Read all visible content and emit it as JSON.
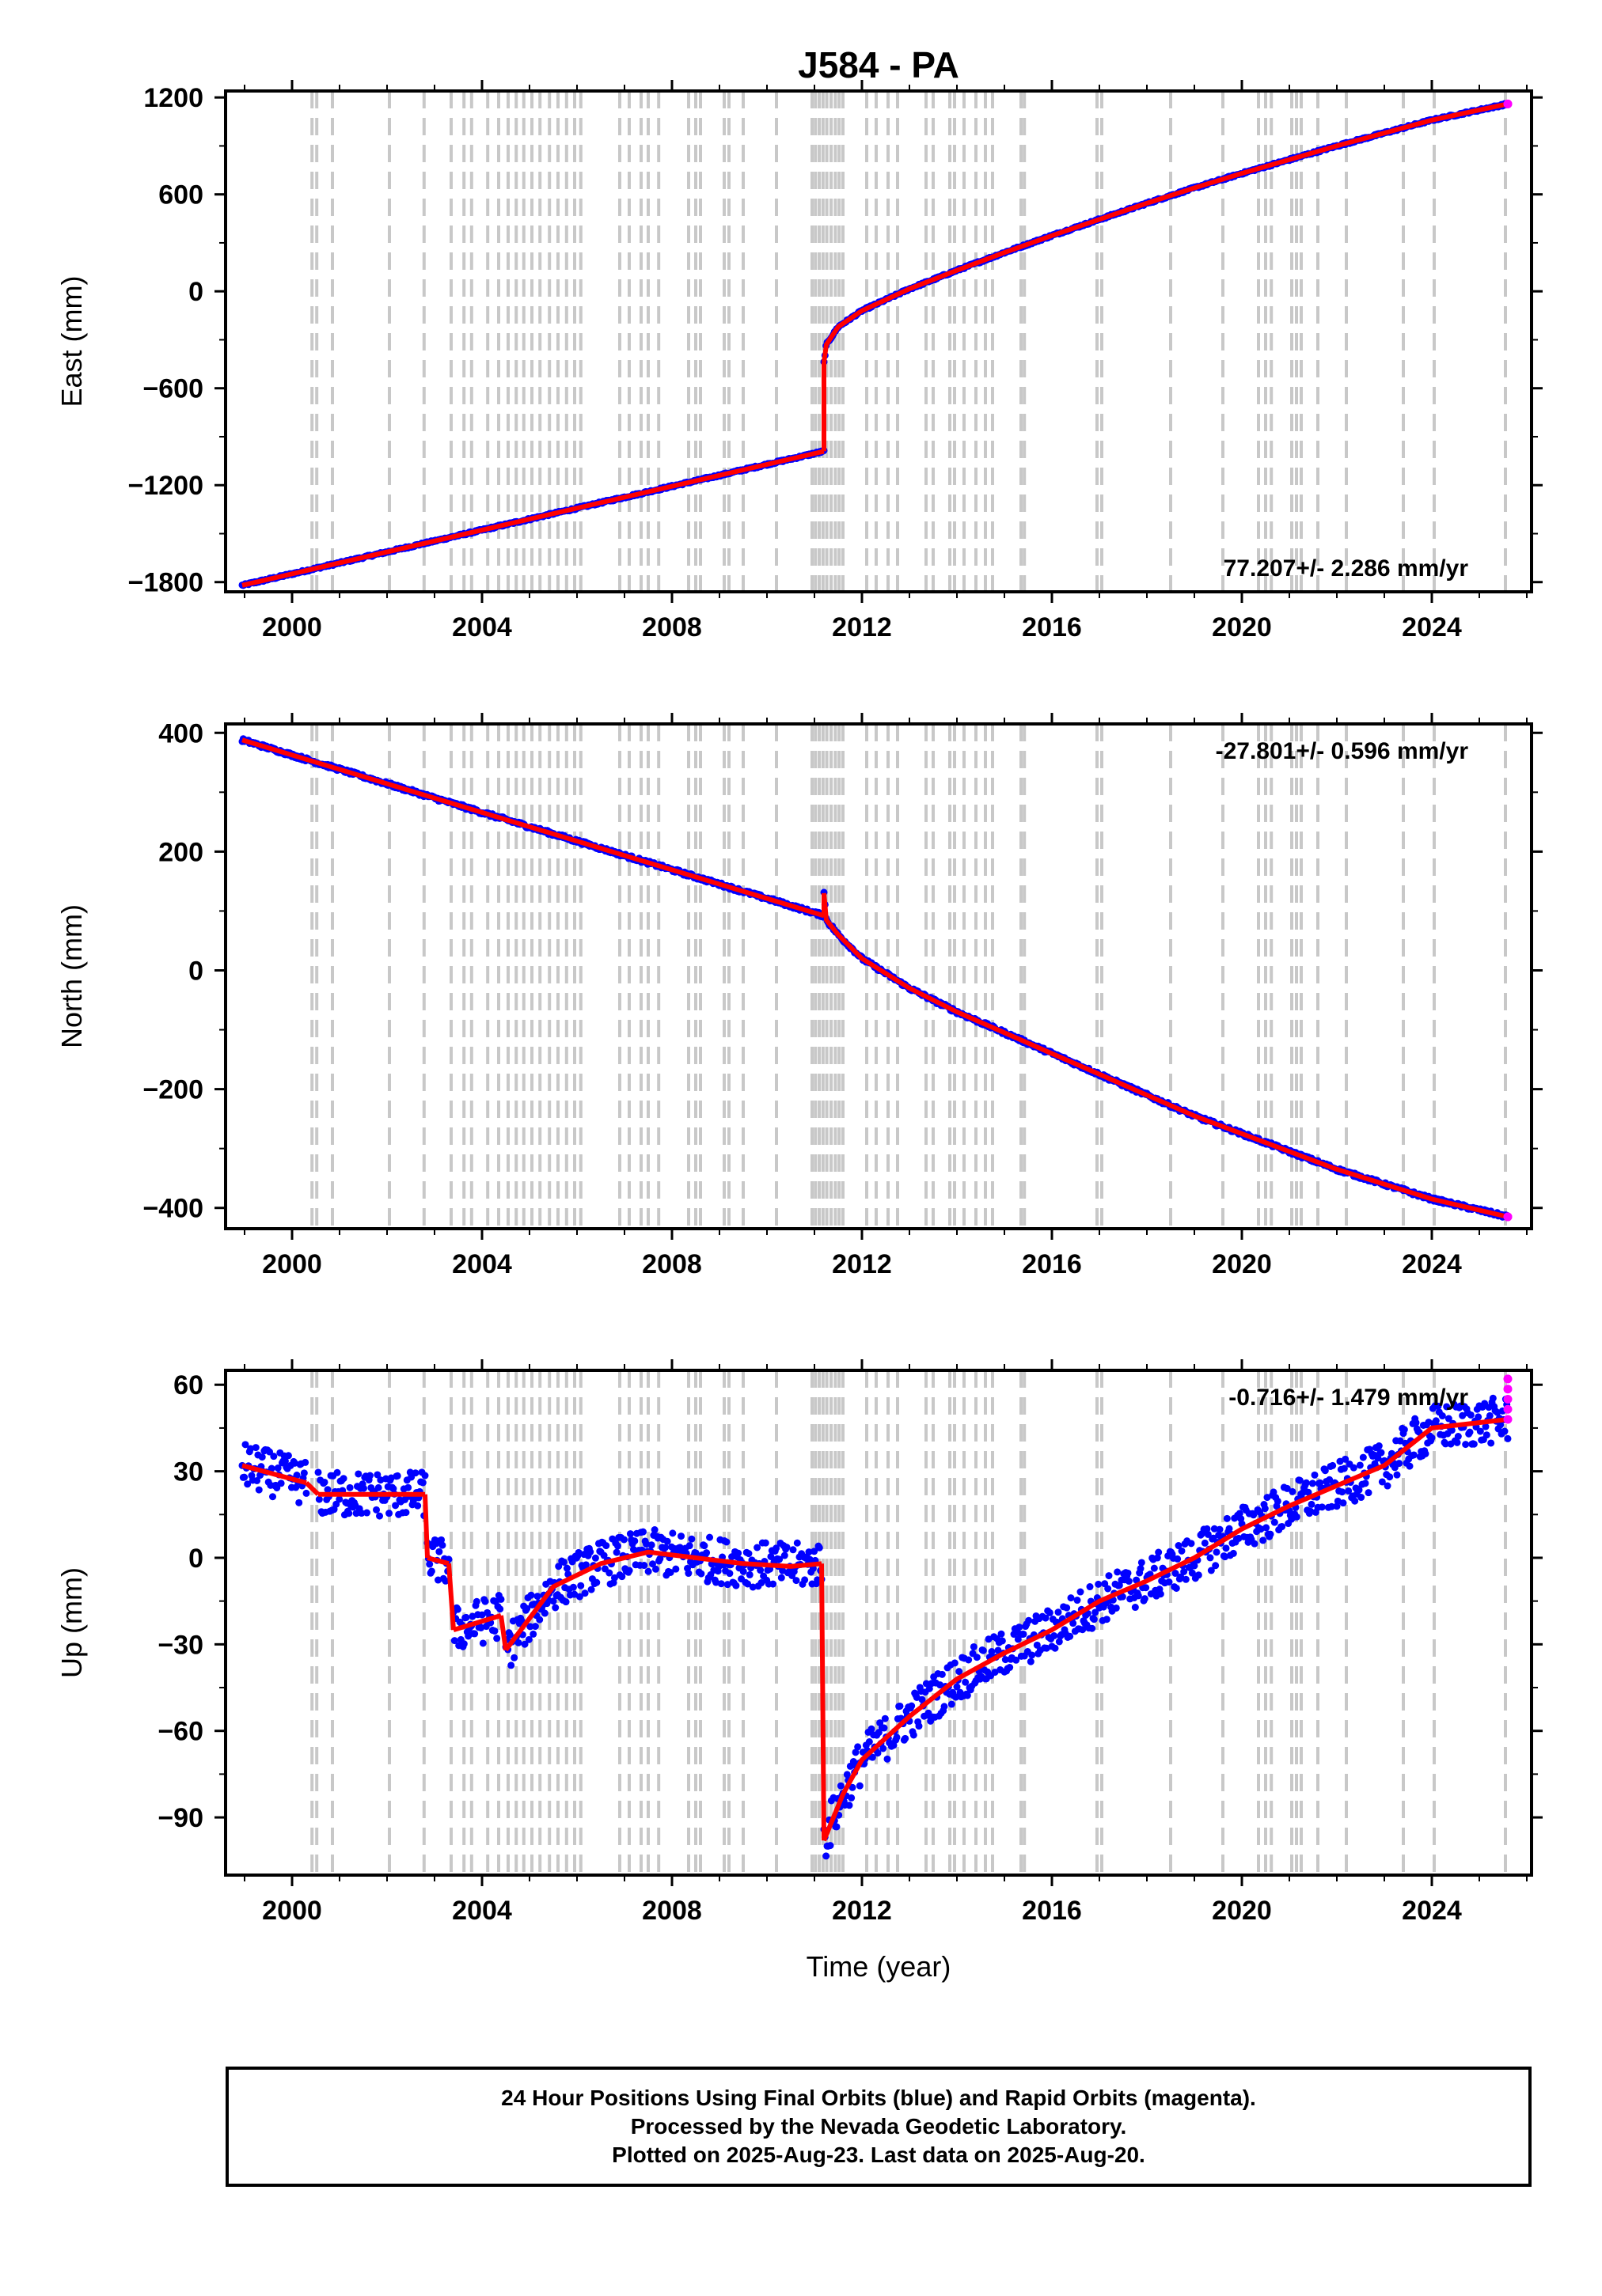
{
  "chart_data": {
    "title": "J584 - PA",
    "xlabel": "Time (year)",
    "xlim": [
      1998.6,
      2026.1
    ],
    "x_ticks": [
      2000,
      2004,
      2008,
      2012,
      2016,
      2020,
      2024
    ],
    "colors": {
      "final_orbits": "#0000ff",
      "rapid_orbits": "#ff00ff",
      "model": "#ff0000",
      "steps": "#c8c8c8"
    },
    "step_lines": [
      2000.42,
      2000.52,
      2000.85,
      2002.05,
      2002.78,
      2003.35,
      2003.62,
      2003.78,
      2004.12,
      2004.35,
      2004.55,
      2004.72,
      2004.88,
      2005.05,
      2005.22,
      2005.42,
      2005.6,
      2005.78,
      2005.95,
      2006.08,
      2006.9,
      2007.1,
      2007.35,
      2007.5,
      2007.72,
      2008.35,
      2008.5,
      2008.6,
      2009.1,
      2009.2,
      2009.5,
      2010.2,
      2010.95,
      2011.02,
      2011.1,
      2011.18,
      2011.26,
      2011.35,
      2011.44,
      2011.52,
      2011.6,
      2012.1,
      2012.3,
      2012.55,
      2012.75,
      2013.35,
      2013.5,
      2013.85,
      2013.95,
      2014.15,
      2014.4,
      2014.6,
      2014.75,
      2015.35,
      2015.42,
      2016.95,
      2017.05,
      2018.5,
      2019.6,
      2020.35,
      2020.5,
      2020.62,
      2021.05,
      2021.15,
      2021.25,
      2021.6,
      2022.2,
      2023.4,
      2024.05,
      2025.55
    ],
    "panels": [
      {
        "id": "east",
        "ylabel": "East (mm)",
        "ylim": [
          -1860,
          1240
        ],
        "y_ticks": [
          1200,
          600,
          0,
          -600,
          -1200,
          -1800
        ],
        "y_tick_labels": [
          "1200",
          "600",
          "0",
          "−600",
          "−1200",
          "−1800"
        ],
        "rate_text": "77.207+/- 2.286 mm/yr",
        "rate_position": "bottom-right",
        "series": [
          {
            "name": "trend-before-2011",
            "x": [
              1998.95,
              2011.2
            ],
            "values": [
              -1820,
              -990
            ]
          },
          {
            "name": "postseismic-after-2011",
            "x": [
              2011.2,
              2011.25,
              2011.5,
              2012,
              2013,
              2014,
              2015,
              2016,
              2017,
              2018,
              2019,
              2020,
              2021,
              2022,
              2023,
              2024,
              2025.6
            ],
            "values": [
              -440,
              -330,
              -220,
              -120,
              15,
              130,
              240,
              345,
              445,
              545,
              640,
              730,
              815,
              900,
              980,
              1060,
              1160
            ]
          }
        ]
      },
      {
        "id": "north",
        "ylabel": "North (mm)",
        "ylim": [
          -435,
          415
        ],
        "y_ticks": [
          400,
          200,
          0,
          -200,
          -400
        ],
        "y_tick_labels": [
          "400",
          "200",
          "0",
          "−200",
          "−400"
        ],
        "rate_text": "-27.801+/- 0.596 mm/yr",
        "rate_position": "top-right",
        "series": [
          {
            "name": "trend-before-2011",
            "x": [
              1998.95,
              2011.2
            ],
            "values": [
              388,
              92
            ]
          },
          {
            "name": "postseismic-after-2011",
            "x": [
              2011.2,
              2011.25,
              2011.5,
              2012,
              2013,
              2014,
              2015,
              2016,
              2017,
              2018,
              2019,
              2020,
              2021,
              2022,
              2023,
              2024,
              2025.6
            ],
            "values": [
              130,
              85,
              60,
              20,
              -30,
              -70,
              -105,
              -140,
              -175,
              -210,
              -245,
              -275,
              -305,
              -335,
              -360,
              -385,
              -415
            ]
          }
        ]
      },
      {
        "id": "up",
        "ylabel": "Up (mm)",
        "ylim": [
          -110,
          65
        ],
        "y_ticks": [
          60,
          30,
          0,
          -30,
          -60,
          -90
        ],
        "y_tick_labels": [
          "60",
          "30",
          "0",
          "−30",
          "−60",
          "−90"
        ],
        "rate_text": "-0.716+/- 1.479 mm/yr",
        "rate_position": "top-right",
        "series": [
          {
            "name": "model-2000",
            "x": [
              1998.95,
              2000.3
            ],
            "values": [
              32,
              26
            ]
          },
          {
            "name": "model-2000-2002",
            "x": [
              2000.55,
              2002.8
            ],
            "values": [
              22,
              22
            ]
          },
          {
            "name": "model-2003",
            "x": [
              2002.85,
              2003.3
            ],
            "values": [
              0,
              -2
            ]
          },
          {
            "name": "model-2003-2004",
            "x": [
              2003.4,
              2004.4
            ],
            "values": [
              -25,
              -20
            ]
          },
          {
            "name": "model-2004-2011",
            "x": [
              2004.5,
              2005.5,
              2006.5,
              2007.5,
              2008.5,
              2009.5,
              2010.5,
              2011.15
            ],
            "values": [
              -32,
              -10,
              -2,
              2,
              0,
              -2,
              -3,
              -2
            ]
          },
          {
            "name": "model-after-2011",
            "x": [
              2011.2,
              2011.6,
              2012,
              2013,
              2014,
              2015,
              2016,
              2017,
              2018,
              2019,
              2020,
              2021,
              2022,
              2023,
              2024,
              2025.6
            ],
            "values": [
              -98,
              -82,
              -70,
              -55,
              -42,
              -33,
              -25,
              -15,
              -8,
              0,
              10,
              18,
              25,
              32,
              45,
              48
            ]
          }
        ]
      }
    ]
  },
  "footer": {
    "line1": "24 Hour Positions Using Final Orbits (blue) and Rapid Orbits (magenta).",
    "line2": "Processed by the Nevada Geodetic Laboratory.",
    "line3": "Plotted on 2025-Aug-23. Last data on 2025-Aug-20."
  }
}
